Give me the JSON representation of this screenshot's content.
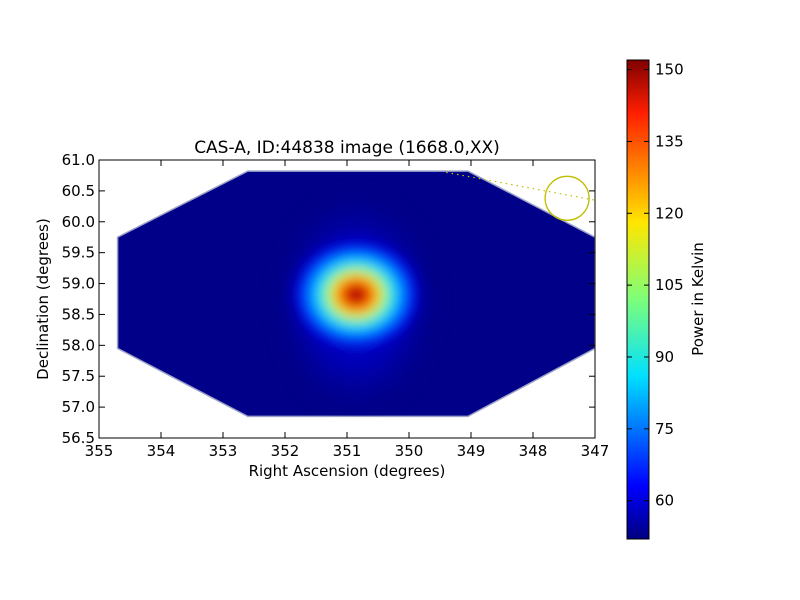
{
  "chart_data": {
    "type": "heatmap",
    "title": "CAS-A, ID:44838 image (1668.0,XX)",
    "xlabel": "Right Ascension (degrees)",
    "ylabel": "Declination (degrees)",
    "xlim": [
      355,
      347
    ],
    "ylim": [
      56.5,
      61.0
    ],
    "x_ticks": [
      "355",
      "354",
      "353",
      "352",
      "351",
      "350",
      "349",
      "348",
      "347"
    ],
    "y_ticks": [
      "56.5",
      "57.0",
      "57.5",
      "58.0",
      "58.5",
      "59.0",
      "59.5",
      "60.0",
      "60.5",
      "61.0"
    ],
    "source_peak": {
      "ra": 350.85,
      "dec": 58.82,
      "value": 151
    },
    "background_level": 52,
    "image_region_ra_dec": [
      [
        352.6,
        60.82
      ],
      [
        349.05,
        60.82
      ],
      [
        347.0,
        59.75
      ],
      [
        347.0,
        57.95
      ],
      [
        349.05,
        56.85
      ],
      [
        352.6,
        56.85
      ],
      [
        354.7,
        57.95
      ],
      [
        354.7,
        59.75
      ]
    ],
    "beam_marker": {
      "ra": 347.45,
      "dec": 60.38,
      "radius_deg": 0.35,
      "color": "#bfbf00"
    },
    "guide_line": {
      "from": [
        349.4,
        60.8
      ],
      "to": [
        347.0,
        60.35
      ],
      "style": "dotted",
      "color": "#bfbf00"
    },
    "colorbar": {
      "label": "Power in Kelvin",
      "range": [
        52,
        152
      ],
      "ticks": [
        60,
        75,
        90,
        105,
        120,
        135,
        150
      ],
      "tick_labels": [
        "60",
        "75",
        "90",
        "105",
        "120",
        "135",
        "150"
      ],
      "colormap": "jet"
    },
    "grid": false,
    "legend": "none"
  }
}
